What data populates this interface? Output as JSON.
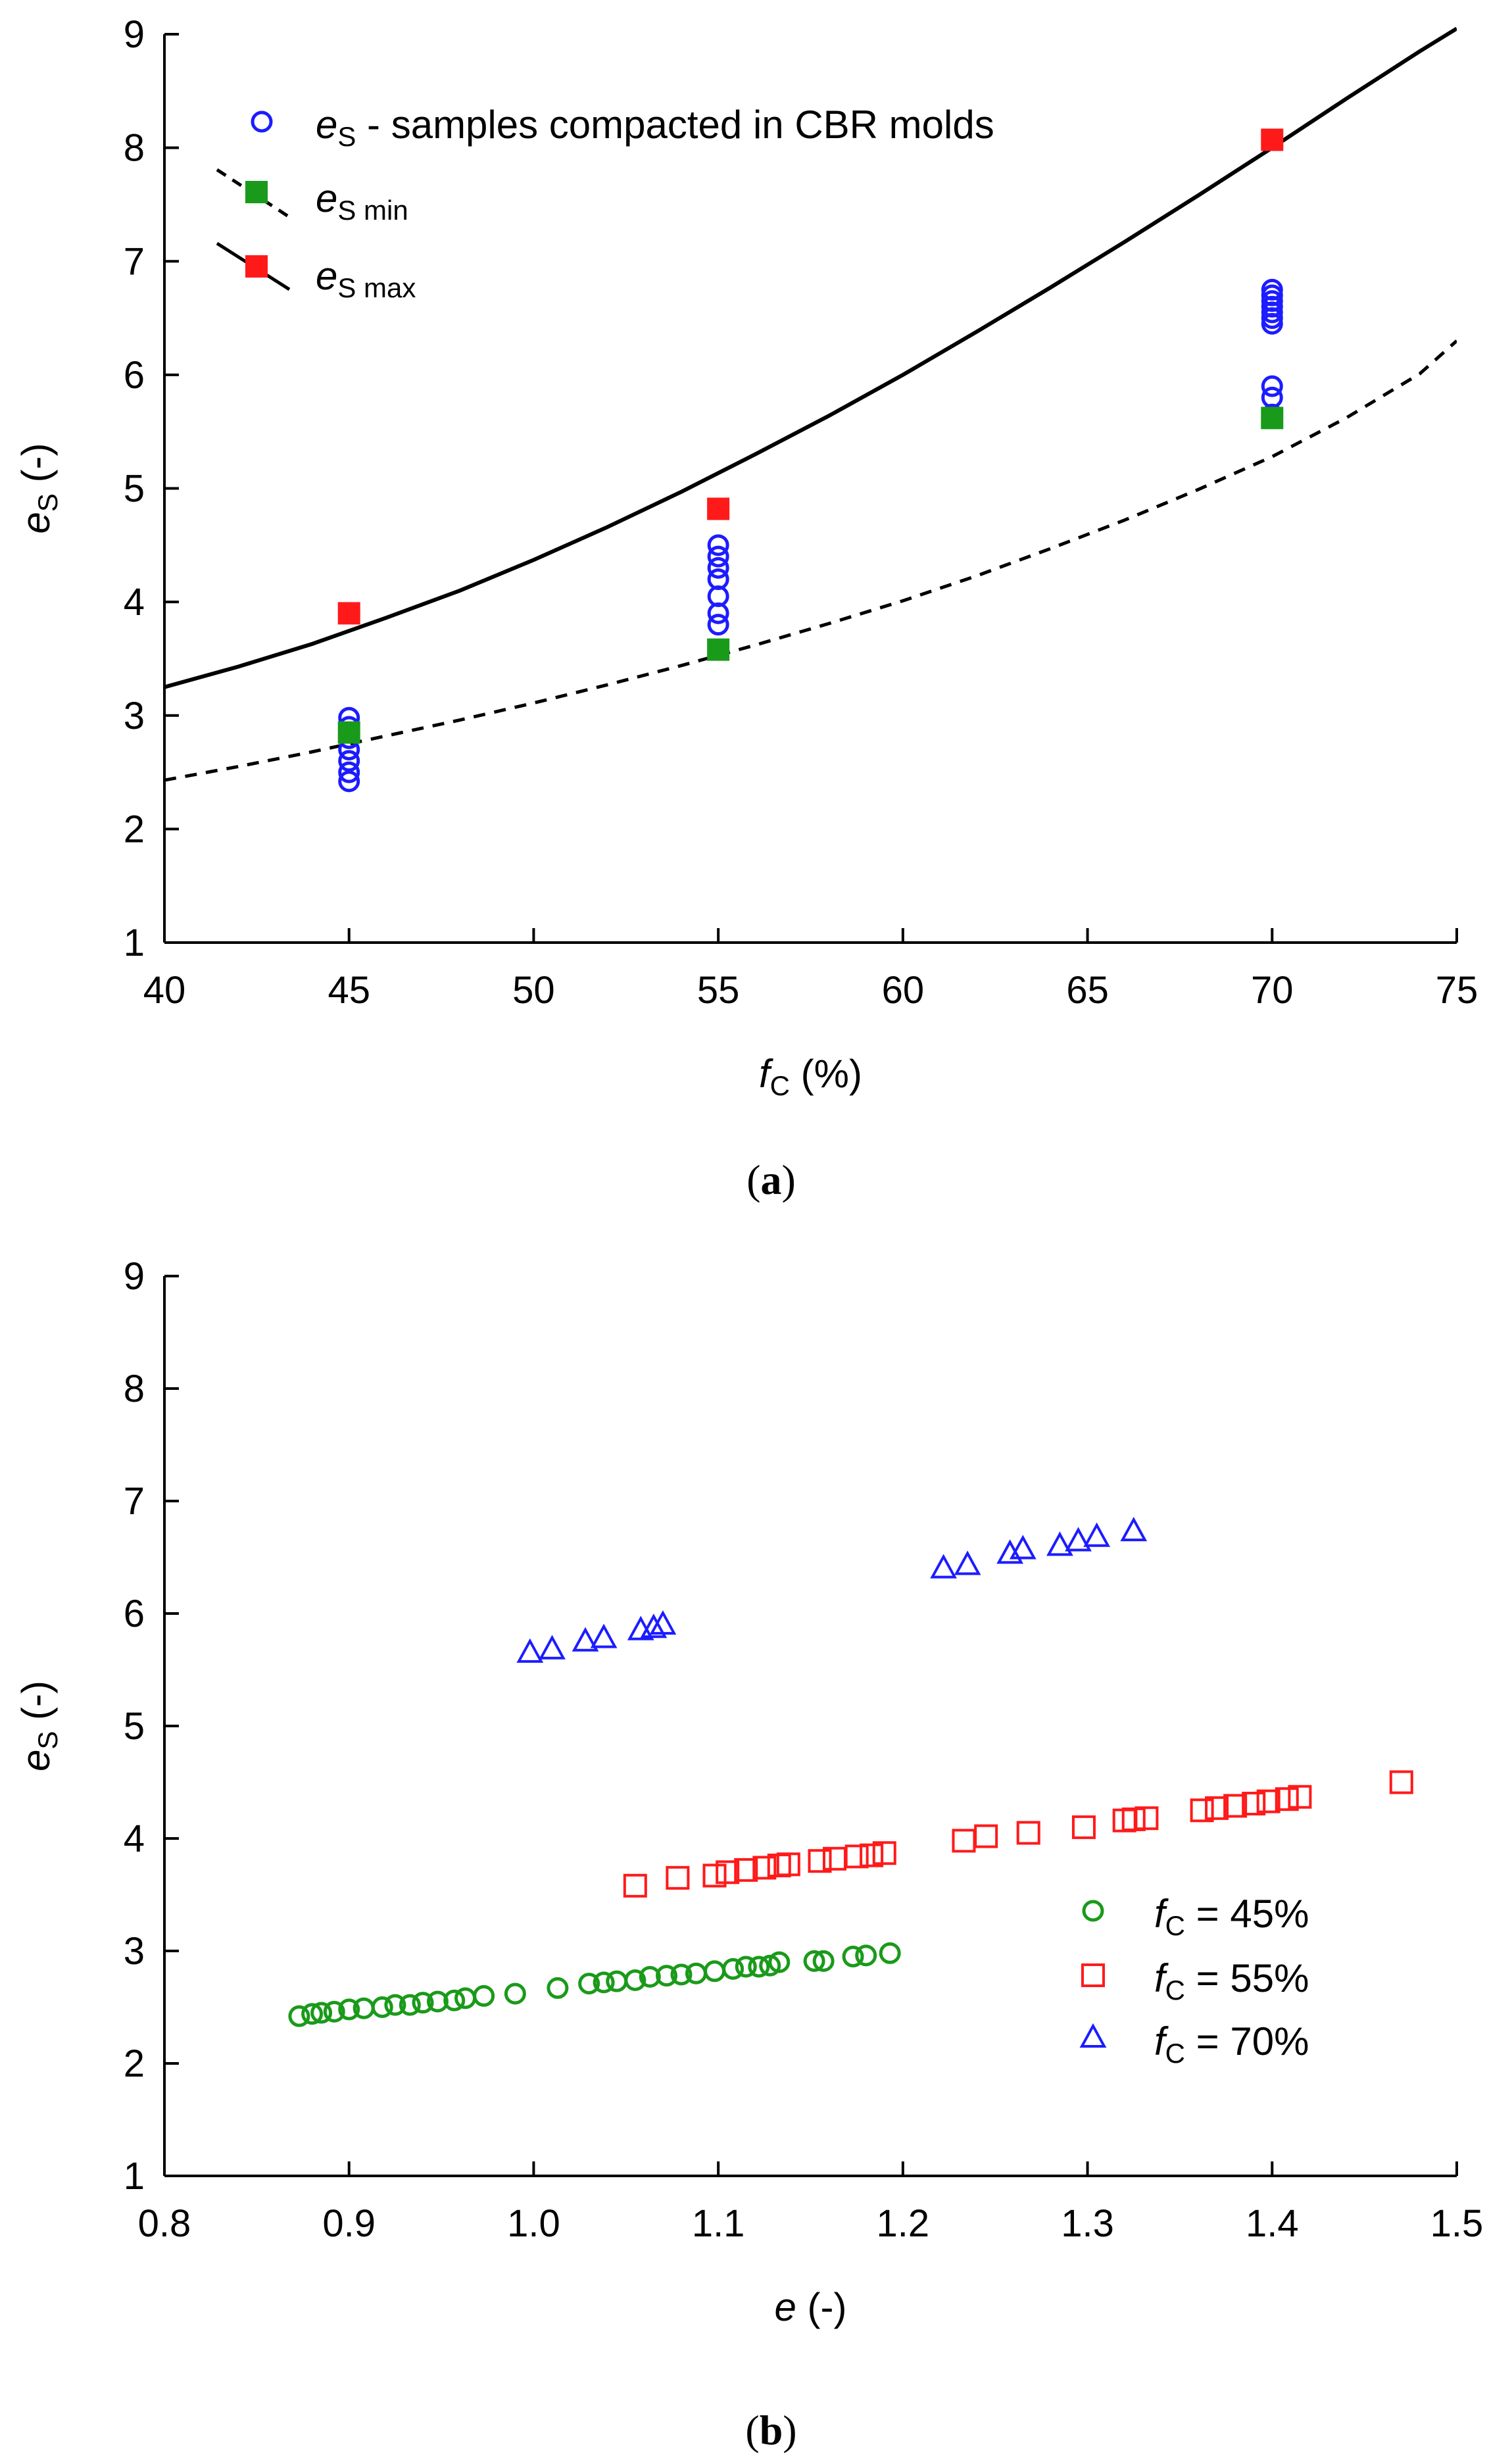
{
  "chart_data": [
    {
      "type": "scatter",
      "panel_label": "a",
      "xlabel_var": "f",
      "xlabel_sub": "C",
      "xlabel_unit": " (%)",
      "ylabel_var": "e",
      "ylabel_sub": "S",
      "ylabel_unit": " (-)",
      "xlim": [
        40,
        75
      ],
      "ylim": [
        1,
        9
      ],
      "xticks": [
        40,
        45,
        50,
        55,
        60,
        65,
        70,
        75
      ],
      "yticks": [
        1,
        2,
        3,
        4,
        5,
        6,
        7,
        8,
        9
      ],
      "curves": [
        {
          "name": "es max curve",
          "style": "solid",
          "x": [
            40,
            42,
            44,
            46,
            48,
            50,
            52,
            54,
            56,
            58,
            60,
            62,
            64,
            66,
            68,
            70,
            72,
            74,
            75
          ],
          "y": [
            3.25,
            3.43,
            3.63,
            3.86,
            4.1,
            4.37,
            4.66,
            4.97,
            5.3,
            5.64,
            6.0,
            6.38,
            6.77,
            7.17,
            7.58,
            8.0,
            8.43,
            8.85,
            9.05
          ]
        },
        {
          "name": "es min curve",
          "style": "dashed",
          "x": [
            40,
            42,
            44,
            46,
            48,
            50,
            52,
            54,
            56,
            58,
            60,
            62,
            64,
            66,
            68,
            70,
            72,
            74,
            75
          ],
          "y": [
            2.43,
            2.55,
            2.68,
            2.82,
            2.96,
            3.11,
            3.27,
            3.44,
            3.62,
            3.81,
            4.01,
            4.23,
            4.47,
            4.72,
            4.99,
            5.28,
            5.62,
            6.01,
            6.3
          ]
        }
      ],
      "series": [
        {
          "name": "es - samples compacted in CBR molds",
          "marker": "circle",
          "color": "#1c1cff",
          "x": [
            45,
            45,
            45,
            45,
            45,
            45,
            45,
            55,
            55,
            55,
            55,
            55,
            55,
            55,
            70,
            70,
            70,
            70,
            70,
            70,
            70,
            70,
            70,
            70
          ],
          "y": [
            2.42,
            2.5,
            2.6,
            2.7,
            2.8,
            2.9,
            2.98,
            3.8,
            3.9,
            4.05,
            4.2,
            4.3,
            4.4,
            4.5,
            5.65,
            5.8,
            5.9,
            6.45,
            6.55,
            6.6,
            6.65,
            6.7,
            6.75,
            6.5
          ]
        },
        {
          "name": "es min",
          "marker": "square",
          "color": "#1a9a1a",
          "x": [
            45,
            55,
            70
          ],
          "y": [
            2.85,
            3.58,
            5.62
          ]
        },
        {
          "name": "es max",
          "marker": "square",
          "color": "#ff1a1a",
          "x": [
            45,
            55,
            70
          ],
          "y": [
            3.9,
            4.82,
            8.07
          ]
        }
      ],
      "legend": [
        {
          "var": "e",
          "sub": "S",
          "text": " - samples compacted in CBR molds"
        },
        {
          "var": "e",
          "sub": "S min",
          "text": ""
        },
        {
          "var": "e",
          "sub": "S max",
          "text": ""
        }
      ],
      "legend_position": "top-left"
    },
    {
      "type": "scatter",
      "panel_label": "b",
      "xlabel_var": "e",
      "xlabel_sub": "",
      "xlabel_unit": " (-)",
      "ylabel_var": "e",
      "ylabel_sub": "S",
      "ylabel_unit": " (-)",
      "xlim": [
        0.8,
        1.5
      ],
      "ylim": [
        1,
        9
      ],
      "xticks": [
        0.8,
        0.9,
        1.0,
        1.1,
        1.2,
        1.3,
        1.4,
        1.5
      ],
      "xtick_labels": [
        "0.8",
        "0.9",
        "1.0",
        "1.1",
        "1.2",
        "1.3",
        "1.4",
        "1.5"
      ],
      "yticks": [
        1,
        2,
        3,
        4,
        5,
        6,
        7,
        8,
        9
      ],
      "series": [
        {
          "name": "fC = 45%",
          "marker": "circle",
          "color": "#1a9a1a",
          "x": [
            0.873,
            0.88,
            0.885,
            0.892,
            0.9,
            0.908,
            0.918,
            0.925,
            0.933,
            0.94,
            0.948,
            0.957,
            0.963,
            0.973,
            0.99,
            1.013,
            1.03,
            1.038,
            1.045,
            1.055,
            1.063,
            1.072,
            1.08,
            1.088,
            1.098,
            1.108,
            1.115,
            1.122,
            1.128,
            1.133,
            1.152,
            1.157,
            1.173,
            1.18,
            1.193
          ],
          "y": [
            2.42,
            2.44,
            2.45,
            2.46,
            2.48,
            2.49,
            2.5,
            2.52,
            2.52,
            2.54,
            2.55,
            2.56,
            2.58,
            2.6,
            2.62,
            2.67,
            2.71,
            2.72,
            2.73,
            2.74,
            2.77,
            2.78,
            2.79,
            2.8,
            2.82,
            2.84,
            2.86,
            2.86,
            2.87,
            2.9,
            2.91,
            2.91,
            2.95,
            2.96,
            2.98
          ]
        },
        {
          "name": "fC = 55%",
          "marker": "square",
          "color": "#ff1a1a",
          "x": [
            1.055,
            1.078,
            1.098,
            1.105,
            1.115,
            1.125,
            1.133,
            1.138,
            1.155,
            1.163,
            1.175,
            1.183,
            1.19,
            1.233,
            1.245,
            1.268,
            1.298,
            1.32,
            1.325,
            1.332,
            1.362,
            1.37,
            1.38,
            1.39,
            1.398,
            1.408,
            1.415,
            1.47
          ],
          "y": [
            3.58,
            3.65,
            3.67,
            3.7,
            3.72,
            3.74,
            3.76,
            3.77,
            3.8,
            3.82,
            3.84,
            3.85,
            3.87,
            3.98,
            4.02,
            4.05,
            4.1,
            4.16,
            4.17,
            4.18,
            4.25,
            4.27,
            4.29,
            4.31,
            4.33,
            4.35,
            4.37,
            4.5
          ]
        },
        {
          "name": "fC = 70%",
          "marker": "triangle",
          "color": "#1c1cff",
          "x": [
            0.998,
            1.01,
            1.028,
            1.038,
            1.058,
            1.065,
            1.07,
            1.222,
            1.235,
            1.258,
            1.265,
            1.285,
            1.295,
            1.305,
            1.325
          ],
          "y": [
            5.65,
            5.68,
            5.75,
            5.78,
            5.85,
            5.87,
            5.9,
            6.4,
            6.43,
            6.53,
            6.57,
            6.6,
            6.64,
            6.68,
            6.73
          ]
        }
      ],
      "legend": [
        {
          "var": "f",
          "sub": "C",
          "text": " = 45%"
        },
        {
          "var": "f",
          "sub": "C",
          "text": " = 55%"
        },
        {
          "var": "f",
          "sub": "C",
          "text": " = 70%"
        }
      ],
      "legend_position": "bottom-right"
    }
  ]
}
